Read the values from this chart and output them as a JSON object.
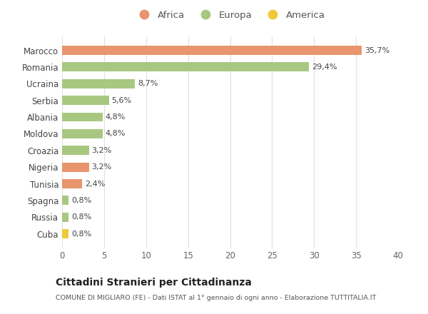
{
  "categories": [
    "Cuba",
    "Russia",
    "Spagna",
    "Tunisia",
    "Nigeria",
    "Croazia",
    "Moldova",
    "Albania",
    "Serbia",
    "Ucraina",
    "Romania",
    "Marocco"
  ],
  "values": [
    0.8,
    0.8,
    0.8,
    2.4,
    3.2,
    3.2,
    4.8,
    4.8,
    5.6,
    8.7,
    29.4,
    35.7
  ],
  "labels": [
    "0,8%",
    "0,8%",
    "0,8%",
    "2,4%",
    "3,2%",
    "3,2%",
    "4,8%",
    "4,8%",
    "5,6%",
    "8,7%",
    "29,4%",
    "35,7%"
  ],
  "colors": [
    "#f0c93a",
    "#a8c882",
    "#a8c882",
    "#e8956d",
    "#e8956d",
    "#a8c882",
    "#a8c882",
    "#a8c882",
    "#a8c882",
    "#a8c882",
    "#a8c882",
    "#e8956d"
  ],
  "legend": [
    {
      "label": "Africa",
      "color": "#e8956d"
    },
    {
      "label": "Europa",
      "color": "#a8c882"
    },
    {
      "label": "America",
      "color": "#f0c93a"
    }
  ],
  "title": "Cittadini Stranieri per Cittadinanza",
  "subtitle": "COMUNE DI MIGLIARO (FE) - Dati ISTAT al 1° gennaio di ogni anno - Elaborazione TUTTITALIA.IT",
  "xlim": [
    0,
    40
  ],
  "xticks": [
    0,
    5,
    10,
    15,
    20,
    25,
    30,
    35,
    40
  ],
  "background_color": "#ffffff",
  "grid_color": "#e0e0e0"
}
